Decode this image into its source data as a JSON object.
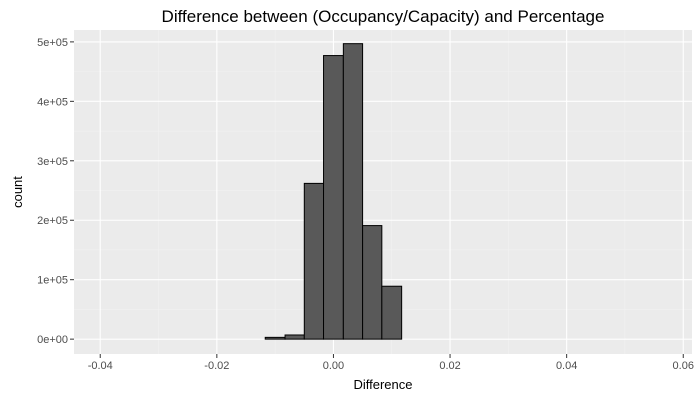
{
  "chart_data": {
    "type": "bar",
    "title": "Difference between (Occupancy/Capacity) and Percentage",
    "xlabel": "Difference",
    "ylabel": "count",
    "xlim": [
      -0.0445,
      0.0615
    ],
    "ylim": [
      -25000,
      520000
    ],
    "x_ticks": [
      -0.04,
      -0.02,
      0.0,
      0.02,
      0.04,
      0.06
    ],
    "x_tick_labels": [
      "-0.04",
      "-0.02",
      "0.00",
      "0.02",
      "0.04",
      "0.06"
    ],
    "y_ticks": [
      0,
      100000,
      200000,
      300000,
      400000,
      500000
    ],
    "y_tick_labels": [
      "0e+00",
      "1e+05",
      "2e+05",
      "3e+05",
      "4e+05",
      "5e+05"
    ],
    "grid": true,
    "bin_width": 0.00333,
    "bins": [
      {
        "x_start": -0.0417,
        "x_end": -0.0117,
        "count": 0
      },
      {
        "x_start": -0.0117,
        "x_end": -0.0083,
        "count": 3000
      },
      {
        "x_start": -0.0083,
        "x_end": -0.005,
        "count": 7000
      },
      {
        "x_start": -0.005,
        "x_end": -0.0017,
        "count": 262000
      },
      {
        "x_start": -0.0017,
        "x_end": 0.0017,
        "count": 477000
      },
      {
        "x_start": 0.0017,
        "x_end": 0.005,
        "count": 497000
      },
      {
        "x_start": 0.005,
        "x_end": 0.0083,
        "count": 191000
      },
      {
        "x_start": 0.0083,
        "x_end": 0.0117,
        "count": 89000
      },
      {
        "x_start": 0.0117,
        "x_end": 0.0583,
        "count": 0
      }
    ],
    "colors": {
      "panel": "#ebebeb",
      "grid_major": "#ffffff",
      "grid_minor": "#f2f2f2",
      "bar_fill": "#595959",
      "bar_outline": "#000000",
      "tick_label": "#4d4d4d",
      "tick_mark": "#333333"
    }
  }
}
